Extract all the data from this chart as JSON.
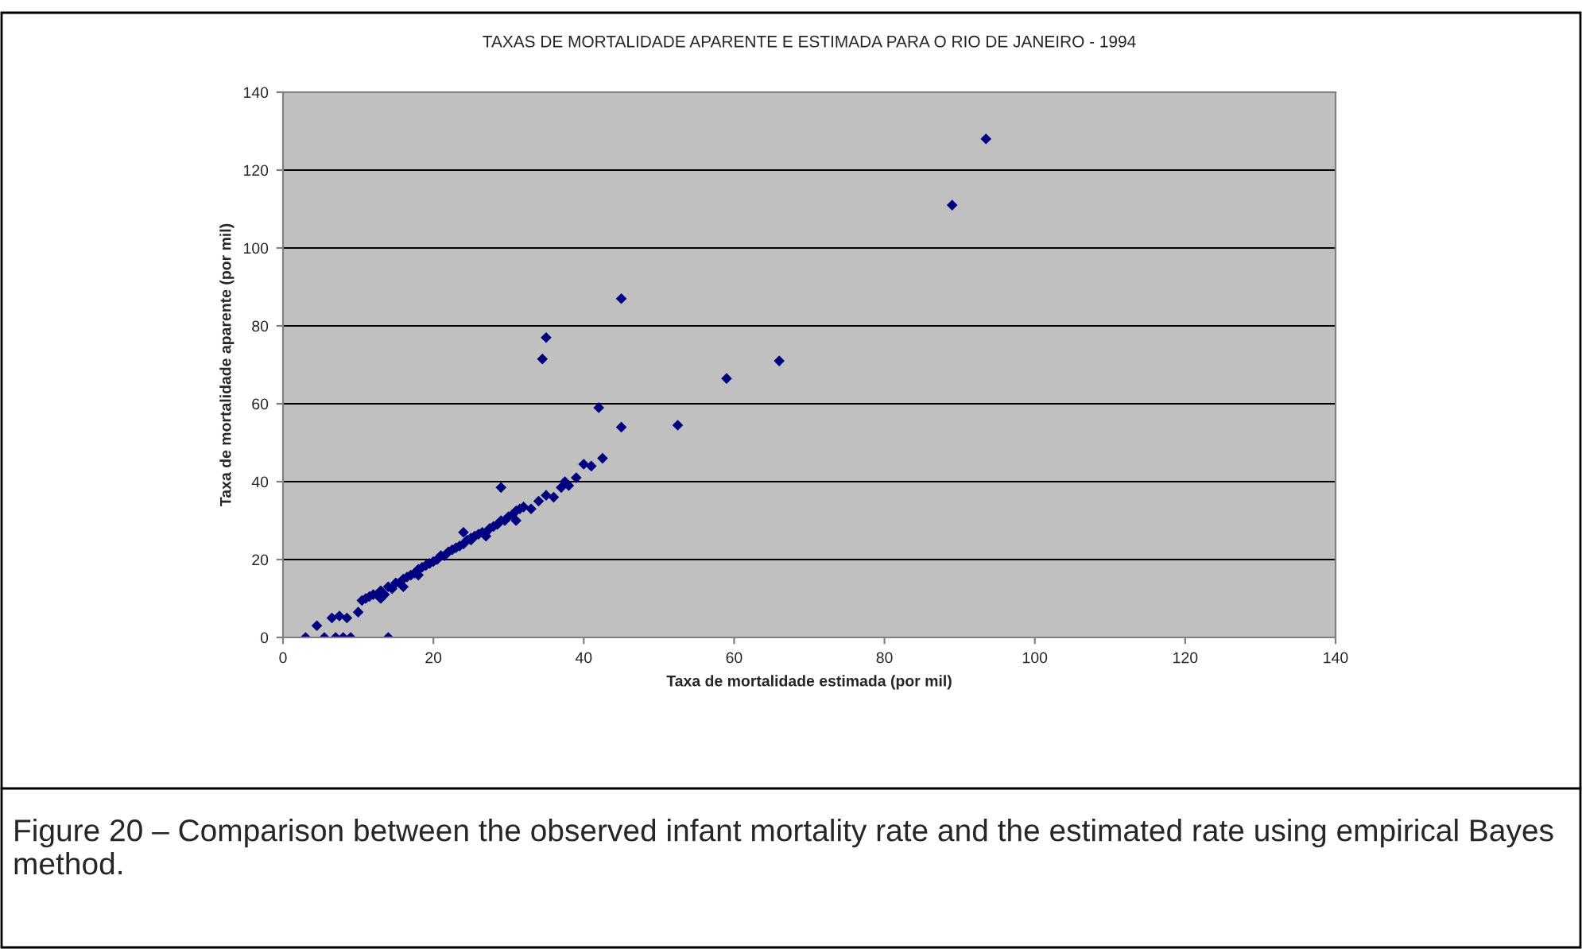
{
  "chart_data": {
    "type": "scatter",
    "title": "TAXAS DE MORTALIDADE APARENTE E ESTIMADA PARA O RIO DE JANEIRO - 1994",
    "xlabel": "Taxa de mortalidade estimada (por mil)",
    "ylabel": "Taxa de mortalidade aparente (por mil)",
    "annotations": [
      "Figure 20 – Comparison between the observed infant mortality rate and the estimated rate using empirical Bayes method."
    ],
    "series": [
      {
        "color": "#000080",
        "x": [
          3,
          5.5,
          7,
          8,
          9,
          14,
          4.5,
          6.5,
          7.5,
          8.5,
          10,
          10.5,
          11,
          12,
          12.5,
          13,
          13.5,
          14,
          14.5,
          15,
          15.5,
          16,
          16.5,
          17,
          17.5,
          18,
          18.5,
          19,
          19.5,
          20,
          20.5,
          21,
          21.5,
          22,
          22.5,
          23,
          23.5,
          24,
          24.5,
          25,
          25.5,
          26,
          26.5,
          27,
          27.5,
          28,
          28.5,
          29,
          29.5,
          30,
          30.5,
          31,
          31.5,
          32,
          33,
          34,
          35,
          36,
          37,
          37.5,
          38,
          39,
          40,
          41,
          42.5,
          42,
          45,
          45,
          34.5,
          35,
          52.5,
          59,
          66,
          89,
          93.5,
          11.5,
          13,
          16,
          18,
          24,
          25,
          27,
          29,
          31
        ],
        "values": [
          0,
          0,
          0,
          0,
          0,
          0,
          3,
          5,
          5.5,
          5,
          6.5,
          9.5,
          10,
          11,
          11,
          12,
          11,
          13,
          12.5,
          14,
          14,
          15,
          15.5,
          16,
          16.5,
          17.5,
          18,
          18.5,
          19,
          19.5,
          20,
          21,
          21,
          22,
          22.5,
          23,
          23.5,
          24,
          25,
          25.5,
          26,
          26.5,
          27,
          27,
          28,
          28.5,
          29,
          30,
          30,
          31,
          31.5,
          32.5,
          33,
          33.5,
          33,
          35,
          36.5,
          36,
          38.5,
          40,
          39,
          41,
          44.5,
          44,
          46,
          59,
          54,
          87,
          71.5,
          77,
          54.5,
          66.5,
          71,
          111,
          128,
          10.5,
          10,
          13,
          16,
          27,
          25,
          26,
          38.5,
          30
        ]
      }
    ],
    "xlim": [
      0,
      140
    ],
    "ylim": [
      0,
      140
    ],
    "xticks": [
      0,
      20,
      40,
      60,
      80,
      100,
      120,
      140
    ],
    "yticks": [
      0,
      20,
      40,
      60,
      80,
      100,
      120,
      140
    ],
    "grid": "y",
    "marker": "diamond"
  }
}
